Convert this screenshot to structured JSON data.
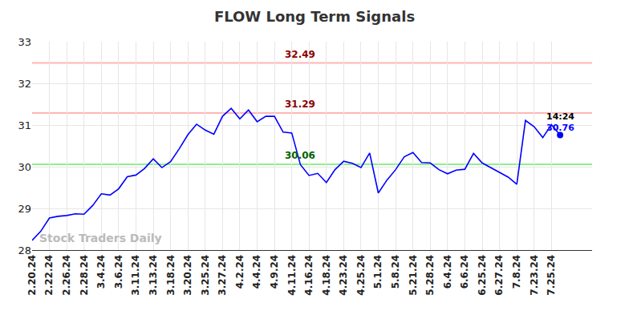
{
  "chart_data": {
    "type": "line",
    "title": "FLOW Long Term Signals",
    "color": "#0000ff",
    "grid": true,
    "legend": "none",
    "ylim": [
      28,
      33
    ],
    "yticks": [
      28,
      29,
      30,
      31,
      32,
      33
    ],
    "categories": [
      "2.20.24",
      null,
      "2.22.24",
      null,
      "2.26.24",
      null,
      "2.28.24",
      null,
      "3.4.24",
      null,
      "3.6.24",
      null,
      "3.11.24",
      null,
      "3.13.24",
      null,
      "3.18.24",
      null,
      "3.20.24",
      null,
      "3.25.24",
      null,
      "3.27.24",
      null,
      "4.2.24",
      null,
      "4.4.24",
      null,
      "4.9.24",
      null,
      "4.11.24",
      null,
      "4.16.24",
      null,
      "4.18.24",
      null,
      "4.23.24",
      null,
      "4.25.24",
      null,
      "5.1.24",
      null,
      "5.8.24",
      null,
      "5.21.24",
      null,
      "5.28.24",
      null,
      "6.4.24",
      null,
      "6.6.24",
      null,
      "6.25.24",
      null,
      "6.27.24",
      null,
      "7.8.24",
      null,
      "7.23.24",
      null,
      "7.25.24",
      null
    ],
    "values": [
      28.23,
      28.45,
      28.77,
      28.81,
      28.83,
      28.87,
      28.86,
      29.07,
      29.35,
      29.32,
      29.47,
      29.76,
      29.8,
      29.96,
      30.19,
      29.98,
      30.12,
      30.43,
      30.77,
      31.02,
      30.88,
      30.78,
      31.21,
      31.4,
      31.15,
      31.36,
      31.08,
      31.21,
      31.21,
      30.83,
      30.81,
      30.05,
      29.79,
      29.84,
      29.62,
      29.93,
      30.13,
      30.08,
      29.98,
      30.33,
      29.37,
      29.68,
      29.93,
      30.24,
      30.34,
      30.1,
      30.09,
      29.93,
      29.83,
      29.92,
      29.94,
      30.32,
      30.09,
      29.98,
      29.87,
      29.75,
      29.58,
      31.11,
      30.96,
      30.7,
      31.01,
      30.76
    ],
    "reference_lines": [
      {
        "value": 32.49,
        "label": "32.49",
        "color": "#ffb6b6",
        "label_color": "#8b0000"
      },
      {
        "value": 31.29,
        "label": "31.29",
        "color": "#ffb6b6",
        "label_color": "#8b0000"
      },
      {
        "value": 30.06,
        "label": "30.06",
        "color": "#90ee90",
        "label_color": "#006400"
      }
    ],
    "last_point": {
      "time": "14:24",
      "value_label": "30.76"
    },
    "watermark": "Stock Traders Daily"
  }
}
